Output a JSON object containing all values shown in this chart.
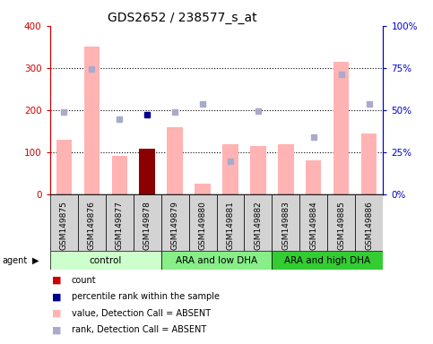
{
  "title": "GDS2652 / 238577_s_at",
  "samples": [
    "GSM149875",
    "GSM149876",
    "GSM149877",
    "GSM149878",
    "GSM149879",
    "GSM149880",
    "GSM149881",
    "GSM149882",
    "GSM149883",
    "GSM149884",
    "GSM149885",
    "GSM149886"
  ],
  "bar_values": [
    130,
    350,
    92,
    108,
    160,
    25,
    120,
    115,
    120,
    80,
    315,
    145
  ],
  "bar_colors": [
    "#ffb3b3",
    "#ffb3b3",
    "#ffb3b3",
    "#8b0000",
    "#ffb3b3",
    "#ffb3b3",
    "#ffb3b3",
    "#ffb3b3",
    "#ffb3b3",
    "#ffb3b3",
    "#ffb3b3",
    "#ffb3b3"
  ],
  "rank_dots_left": [
    195,
    297,
    178,
    190,
    196,
    215,
    78,
    198,
    null,
    135,
    285,
    215
  ],
  "rank_dot_colors": [
    "#aaaacc",
    "#aaaacc",
    "#aaaacc",
    "#00008b",
    "#aaaacc",
    "#aaaacc",
    "#aaaacc",
    "#aaaacc",
    null,
    "#aaaacc",
    "#aaaacc",
    "#aaaacc"
  ],
  "groups": [
    {
      "label": "control",
      "start": 0,
      "end": 4,
      "color": "#ccffcc"
    },
    {
      "label": "ARA and low DHA",
      "start": 4,
      "end": 8,
      "color": "#88ee88"
    },
    {
      "label": "ARA and high DHA",
      "start": 8,
      "end": 12,
      "color": "#33cc33"
    }
  ],
  "ylim_left": [
    0,
    400
  ],
  "ylim_right": [
    0,
    100
  ],
  "yticks_left": [
    0,
    100,
    200,
    300,
    400
  ],
  "ytick_labels_left": [
    "0",
    "100",
    "200",
    "300",
    "400"
  ],
  "yticks_right": [
    0,
    25,
    50,
    75,
    100
  ],
  "ytick_labels_right": [
    "0%",
    "25%",
    "50%",
    "75%",
    "100%"
  ],
  "grid_values": [
    100,
    200,
    300
  ],
  "left_axis_color": "#cc0000",
  "right_axis_color": "#0000cc",
  "legend_items": [
    {
      "color": "#cc0000",
      "label": "count"
    },
    {
      "color": "#00008b",
      "label": "percentile rank within the sample"
    },
    {
      "color": "#ffb3b3",
      "label": "value, Detection Call = ABSENT"
    },
    {
      "color": "#aaaacc",
      "label": "rank, Detection Call = ABSENT"
    }
  ]
}
